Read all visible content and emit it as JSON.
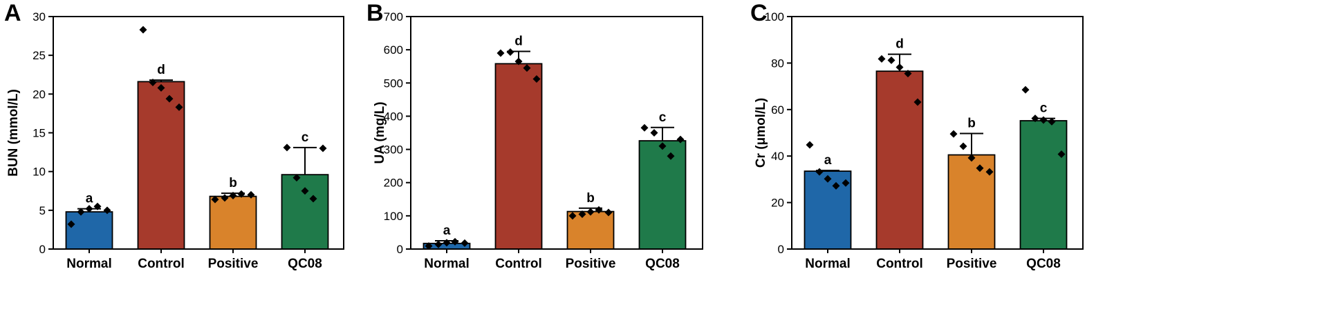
{
  "colors": {
    "Normal": "#1f67a8",
    "Control": "#a63a2c",
    "Positive": "#d9832b",
    "QC08": "#1f7a4a",
    "points": "#000000"
  },
  "chart_data": [
    {
      "type": "bar",
      "panel": "A",
      "ylabel": "BUN (mmol/L)",
      "ylim": [
        0,
        30
      ],
      "yticks": [
        0,
        5,
        10,
        15,
        20,
        25,
        30
      ],
      "categories": [
        "Normal",
        "Control",
        "Positive",
        "QC08"
      ],
      "values": [
        4.8,
        21.6,
        6.8,
        9.6
      ],
      "errors": [
        0.4,
        0.2,
        0.4,
        3.5
      ],
      "significance": [
        "a",
        "d",
        "b",
        "c"
      ],
      "points": [
        [
          3.2,
          4.8,
          5.2,
          5.5,
          5.0
        ],
        [
          28.3,
          21.5,
          20.8,
          19.4,
          18.3
        ],
        [
          6.4,
          6.6,
          6.9,
          7.1,
          7.0
        ],
        [
          13.1,
          9.2,
          7.5,
          6.5,
          13.0
        ]
      ]
    },
    {
      "type": "bar",
      "panel": "B",
      "ylabel": "UA (mg/L)",
      "ylim": [
        0,
        700
      ],
      "yticks": [
        0,
        100,
        200,
        300,
        400,
        500,
        600,
        700
      ],
      "categories": [
        "Normal",
        "Control",
        "Positive",
        "QC08"
      ],
      "values": [
        17,
        558,
        113,
        326
      ],
      "errors": [
        8,
        37,
        10,
        40
      ],
      "significance": [
        "a",
        "d",
        "b",
        "c"
      ],
      "points": [
        [
          9,
          14,
          19,
          22,
          18
        ],
        [
          590,
          593,
          565,
          545,
          512
        ],
        [
          100,
          105,
          112,
          118,
          110
        ],
        [
          365,
          350,
          310,
          280,
          330
        ]
      ]
    },
    {
      "type": "bar",
      "panel": "C",
      "ylabel": "Cr (μmol/L)",
      "ylim": [
        0,
        100
      ],
      "yticks": [
        0,
        20,
        40,
        60,
        80,
        100
      ],
      "categories": [
        "Normal",
        "Control",
        "Positive",
        "QC08"
      ],
      "values": [
        33.5,
        76.5,
        40.5,
        55.2
      ],
      "errors": [
        0.3,
        7.3,
        9.2,
        1.0
      ],
      "significance": [
        "a",
        "d",
        "b",
        "c"
      ],
      "points": [
        [
          44.8,
          33.2,
          30.2,
          27.2,
          28.4
        ],
        [
          81.8,
          81.2,
          78.2,
          75.5,
          63.2
        ],
        [
          49.5,
          44.2,
          39.2,
          34.8,
          33.2
        ],
        [
          68.5,
          56.2,
          55.5,
          54.8,
          40.8
        ]
      ]
    }
  ]
}
